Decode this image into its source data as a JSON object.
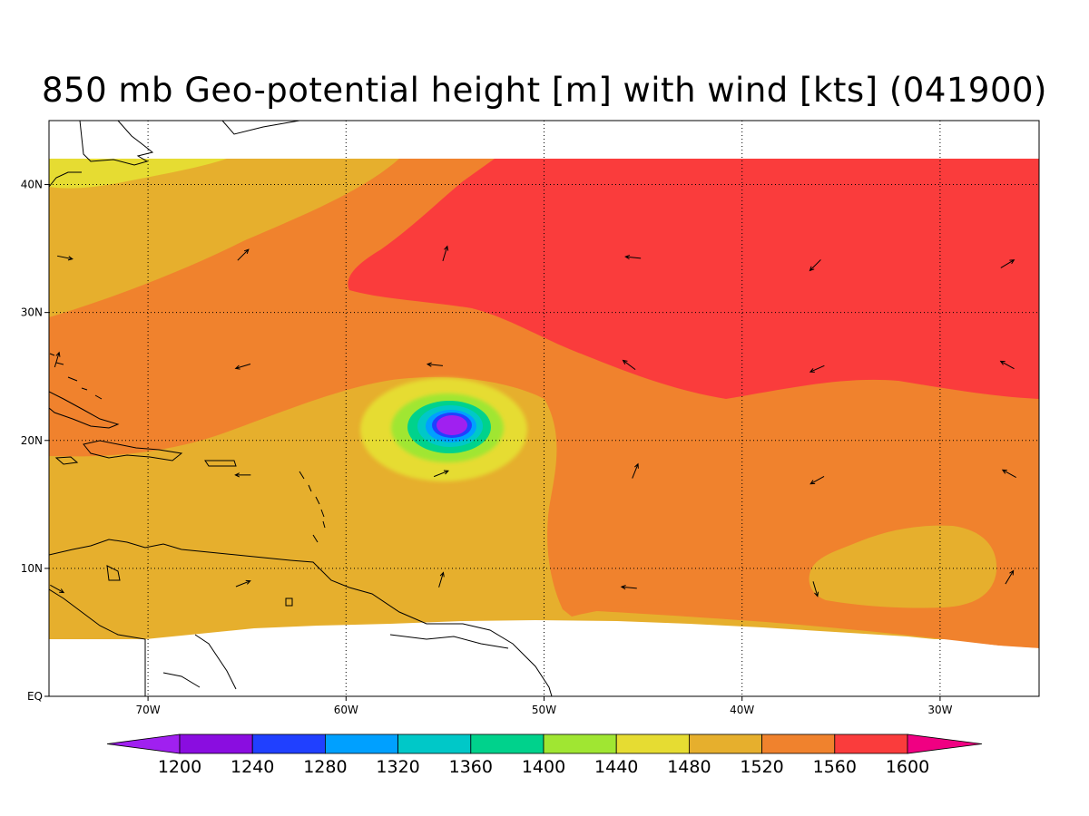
{
  "title": "850 mb Geo-potential height [m] with wind [kts] (041900)",
  "map": {
    "projection": "lat-lon",
    "lon_range": [
      -75,
      -25
    ],
    "lat_range": [
      0,
      45
    ],
    "data_lat_range": [
      4,
      42
    ],
    "variable": "geopotential height",
    "units": "m",
    "vector_field": "wind",
    "vector_units": "kts",
    "grid": "dotted"
  },
  "lon_ticks": [
    {
      "lon": -70,
      "label": "70W"
    },
    {
      "lon": -60,
      "label": "60W"
    },
    {
      "lon": -50,
      "label": "50W"
    },
    {
      "lon": -40,
      "label": "40W"
    },
    {
      "lon": -30,
      "label": "30W"
    }
  ],
  "lat_ticks": [
    {
      "lat": 0,
      "label": "EQ"
    },
    {
      "lat": 10,
      "label": "10N"
    },
    {
      "lat": 20,
      "label": "20N"
    },
    {
      "lat": 30,
      "label": "30N"
    },
    {
      "lat": 40,
      "label": "40N"
    }
  ],
  "colorbar": {
    "levels": [
      "1200",
      "1240",
      "1280",
      "1320",
      "1360",
      "1400",
      "1440",
      "1480",
      "1520",
      "1560",
      "1600"
    ],
    "colors": [
      "#a020f0",
      "#8a0de0",
      "#2040ff",
      "#00a0ff",
      "#00c8c8",
      "#00d28c",
      "#a0e632",
      "#e6dc32",
      "#e6af2d",
      "#f0822d",
      "#fa3c3c",
      "#f00082"
    ]
  },
  "low_center": {
    "lon": -54.7,
    "lat": 21.4,
    "min_height_range": "<1240"
  },
  "winds": [
    {
      "lon": -74.2,
      "lat": 34.3,
      "u": 1,
      "v": -0.2
    },
    {
      "lon": -65.2,
      "lat": 34.5,
      "u": 1,
      "v": 1
    },
    {
      "lon": -55,
      "lat": 34.6,
      "u": 0.3,
      "v": 1
    },
    {
      "lon": -45.5,
      "lat": 34.3,
      "u": -1,
      "v": 0.1
    },
    {
      "lon": -36.3,
      "lat": 33.7,
      "u": -0.7,
      "v": -0.7
    },
    {
      "lon": -26.6,
      "lat": 33.8,
      "u": 1,
      "v": 0.6
    },
    {
      "lon": -74.6,
      "lat": 26.3,
      "u": 0.3,
      "v": 1
    },
    {
      "lon": -65.2,
      "lat": 25.8,
      "u": -1,
      "v": -0.3
    },
    {
      "lon": -55.5,
      "lat": 25.9,
      "u": -1,
      "v": 0.1
    },
    {
      "lon": -45.7,
      "lat": 25.9,
      "u": -0.8,
      "v": 0.6
    },
    {
      "lon": -36.2,
      "lat": 25.6,
      "u": -0.9,
      "v": -0.4
    },
    {
      "lon": -26.6,
      "lat": 25.9,
      "u": -0.9,
      "v": 0.5
    },
    {
      "lon": -65.2,
      "lat": 17.3,
      "u": -1,
      "v": 0
    },
    {
      "lon": -55.2,
      "lat": 17.4,
      "u": 1,
      "v": 0.4
    },
    {
      "lon": -45.4,
      "lat": 17.6,
      "u": 0.4,
      "v": 1
    },
    {
      "lon": -36.2,
      "lat": 16.9,
      "u": -0.9,
      "v": -0.5
    },
    {
      "lon": -26.5,
      "lat": 17.4,
      "u": -0.9,
      "v": 0.5
    },
    {
      "lon": -74.6,
      "lat": 8.4,
      "u": 0.9,
      "v": -0.5
    },
    {
      "lon": -65.2,
      "lat": 8.8,
      "u": 1,
      "v": 0.4
    },
    {
      "lon": -55.2,
      "lat": 9.1,
      "u": 0.3,
      "v": 1
    },
    {
      "lon": -45.7,
      "lat": 8.5,
      "u": -1,
      "v": 0.1
    },
    {
      "lon": -36.3,
      "lat": 8.4,
      "u": 0.3,
      "v": -1
    },
    {
      "lon": -26.5,
      "lat": 9.3,
      "u": 0.6,
      "v": 1
    }
  ]
}
